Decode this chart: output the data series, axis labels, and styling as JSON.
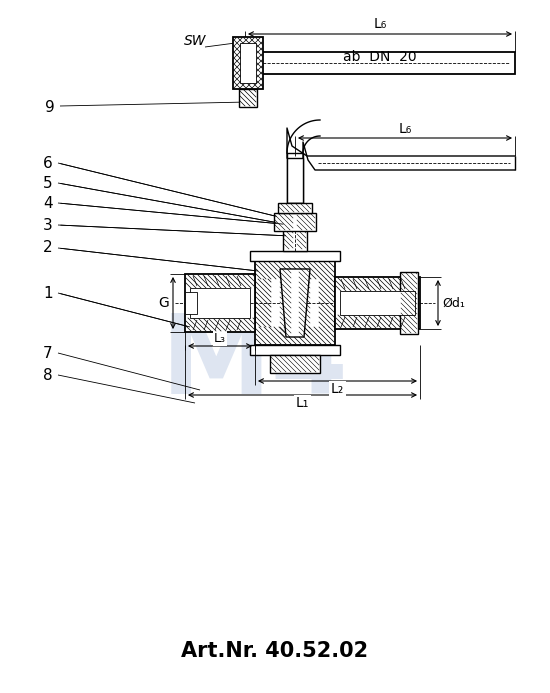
{
  "title": "Art.Nr. 40.52.02",
  "title_fontsize": 15,
  "background_color": "#ffffff",
  "line_color": "#000000",
  "watermark_text": "M4",
  "watermark_color": "#c8d4e8",
  "dim_labels": {
    "L6_top": "L₆",
    "ab_dn20": "ab  DN  20",
    "SW": "SW",
    "label9": "9",
    "L6_main": "L₆",
    "label6": "6",
    "label5": "5",
    "label4": "4",
    "label3": "3",
    "label2": "2",
    "label1": "1",
    "label7": "7",
    "label8": "8",
    "G": "G",
    "L3": "L₃",
    "L2": "L₂",
    "L1": "L₁",
    "phi_d1": "Ød₁"
  }
}
